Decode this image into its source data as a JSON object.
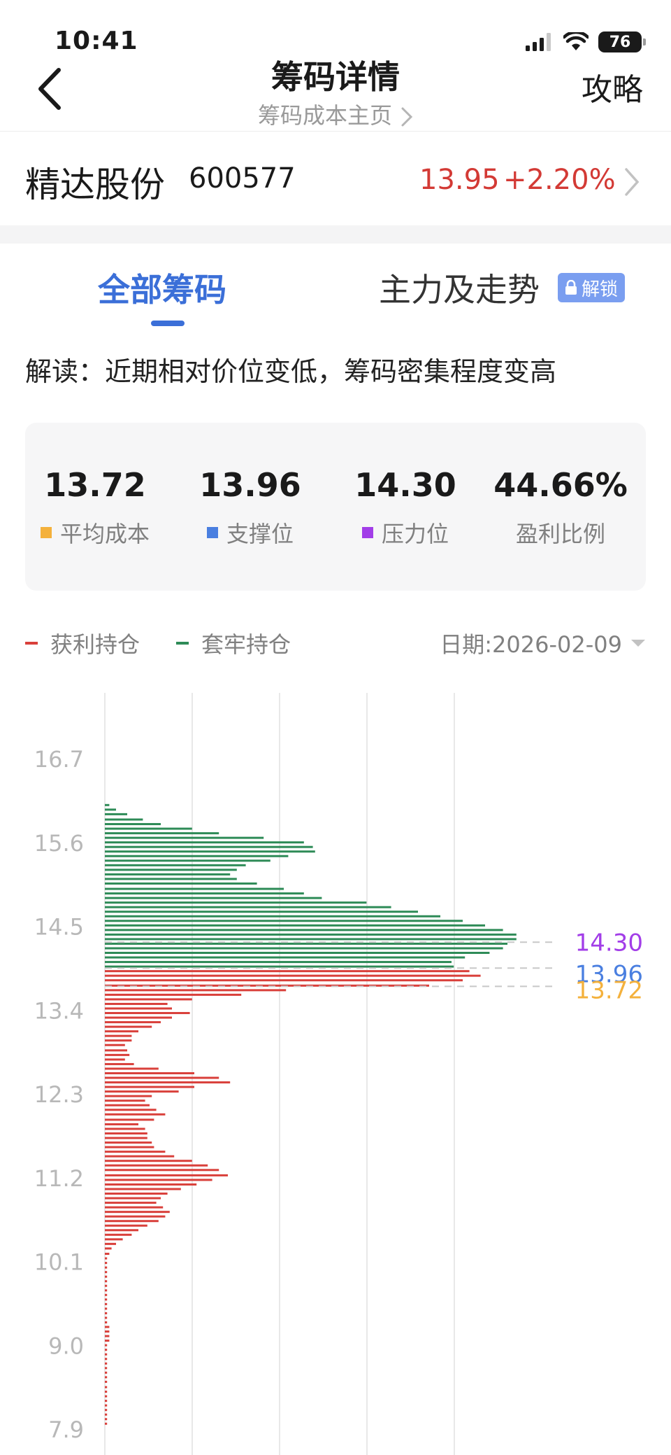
{
  "status_bar": {
    "time": "10:41",
    "battery": "76"
  },
  "nav": {
    "title": "筹码详情",
    "subtitle": "筹码成本主页",
    "right_action": "攻略"
  },
  "stock": {
    "name": "精达股份",
    "code": "600577",
    "price": "13.95",
    "change": "+2.20%"
  },
  "tabs": {
    "all": "全部筹码",
    "main": "主力及走势",
    "lock_label": "解锁"
  },
  "interpretation": "解读：近期相对价位变低，筹码密集程度变高",
  "stats": [
    {
      "value": "13.72",
      "label": "平均成本",
      "color": "#f4b13c"
    },
    {
      "value": "13.96",
      "label": "支撑位",
      "color": "#4a7fe0"
    },
    {
      "value": "14.30",
      "label": "压力位",
      "color": "#a23de8"
    },
    {
      "value": "44.66%",
      "label": "盈利比例",
      "color": null
    }
  ],
  "legend": {
    "profit": "获利持仓",
    "trapped": "套牢持仓",
    "date": "日期:2026-02-09"
  },
  "colors": {
    "profit": "#d9403b",
    "trapped": "#2e8b57",
    "avg_cost": "#f4b13c",
    "support": "#4a7fe0",
    "pressure": "#a23de8",
    "accent": "#3b6fd8"
  },
  "chart_data": {
    "type": "bar",
    "orientation": "horizontal",
    "y_ticks": [
      "16.7",
      "15.6",
      "14.5",
      "13.4",
      "12.3",
      "11.2",
      "10.1",
      "9.0",
      "7.9"
    ],
    "ylim": [
      7.9,
      16.7
    ],
    "grid": "vertical",
    "markers": [
      {
        "value": 14.3,
        "label": "14.30",
        "kind": "pressure"
      },
      {
        "value": 13.96,
        "label": "13.96",
        "kind": "support"
      },
      {
        "value": 13.72,
        "label": "13.72",
        "kind": "avg_cost"
      }
    ],
    "series": [
      {
        "kind": "trapped",
        "price": [
          16.1,
          16.04,
          15.98,
          15.91,
          15.85,
          15.79,
          15.73,
          15.67,
          15.61,
          15.55,
          15.49,
          15.43,
          15.37,
          15.31,
          15.25,
          15.19,
          15.13,
          15.07,
          15.0,
          14.94,
          14.88,
          14.82,
          14.76,
          14.7,
          14.64,
          14.58,
          14.52,
          14.46,
          14.4,
          14.34,
          14.28,
          14.22,
          14.16,
          14.1,
          14.04,
          13.98
        ],
        "volume": [
          2,
          5,
          10,
          17,
          25,
          39,
          51,
          71,
          89,
          93,
          94,
          82,
          74,
          63,
          59,
          56,
          59,
          68,
          80,
          89,
          97,
          117,
          128,
          140,
          150,
          160,
          170,
          178,
          184,
          184,
          180,
          178,
          172,
          161,
          155,
          156
        ]
      },
      {
        "kind": "profit",
        "price": [
          13.92,
          13.86,
          13.8,
          13.73,
          13.67,
          13.61,
          13.55,
          13.49,
          13.43,
          13.37,
          13.31,
          13.25,
          13.19,
          13.13,
          13.07,
          13.01,
          12.95,
          12.88,
          12.82,
          12.76,
          12.7,
          12.64,
          12.58,
          12.52,
          12.46,
          12.4,
          12.34,
          12.28,
          12.22,
          12.16,
          12.1,
          12.04,
          11.97,
          11.91,
          11.85,
          11.79,
          11.73,
          11.67,
          11.61,
          11.55,
          11.49,
          11.43,
          11.37,
          11.31,
          11.24,
          11.18,
          11.12,
          11.06,
          11.0,
          10.94,
          10.88,
          10.82,
          10.76,
          10.7,
          10.64,
          10.58,
          10.52,
          10.46,
          10.4,
          10.34,
          10.28,
          10.21,
          10.15,
          10.09,
          10.03,
          9.97,
          9.91,
          9.85,
          9.79,
          9.73,
          9.67,
          9.61,
          9.55,
          9.49,
          9.43,
          9.37,
          9.31,
          9.25,
          9.19,
          9.13,
          9.07,
          9.01,
          8.95,
          8.89,
          8.83,
          8.77,
          8.71,
          8.65,
          8.59,
          8.53,
          8.46,
          8.4,
          8.34,
          8.28,
          8.22,
          8.16,
          8.1,
          8.04,
          7.98
        ],
        "volume": [
          163,
          168,
          160,
          145,
          81,
          61,
          39,
          28,
          30,
          38,
          30,
          25,
          21,
          15,
          12,
          12,
          9,
          10,
          11,
          9,
          13,
          24,
          40,
          51,
          56,
          40,
          33,
          21,
          18,
          20,
          23,
          27,
          22,
          15,
          18,
          19,
          19,
          21,
          22,
          27,
          31,
          39,
          46,
          51,
          55,
          48,
          41,
          34,
          28,
          25,
          23,
          26,
          29,
          27,
          24,
          19,
          15,
          12,
          8,
          5,
          3,
          2,
          1,
          1,
          1,
          1,
          1,
          1,
          1,
          1,
          1,
          1,
          1,
          1,
          1,
          1,
          1,
          2,
          2,
          2,
          2,
          1,
          1,
          1,
          1,
          1,
          1,
          1,
          1,
          1,
          1,
          1,
          1,
          1,
          1,
          1,
          1,
          1,
          1
        ]
      }
    ]
  }
}
